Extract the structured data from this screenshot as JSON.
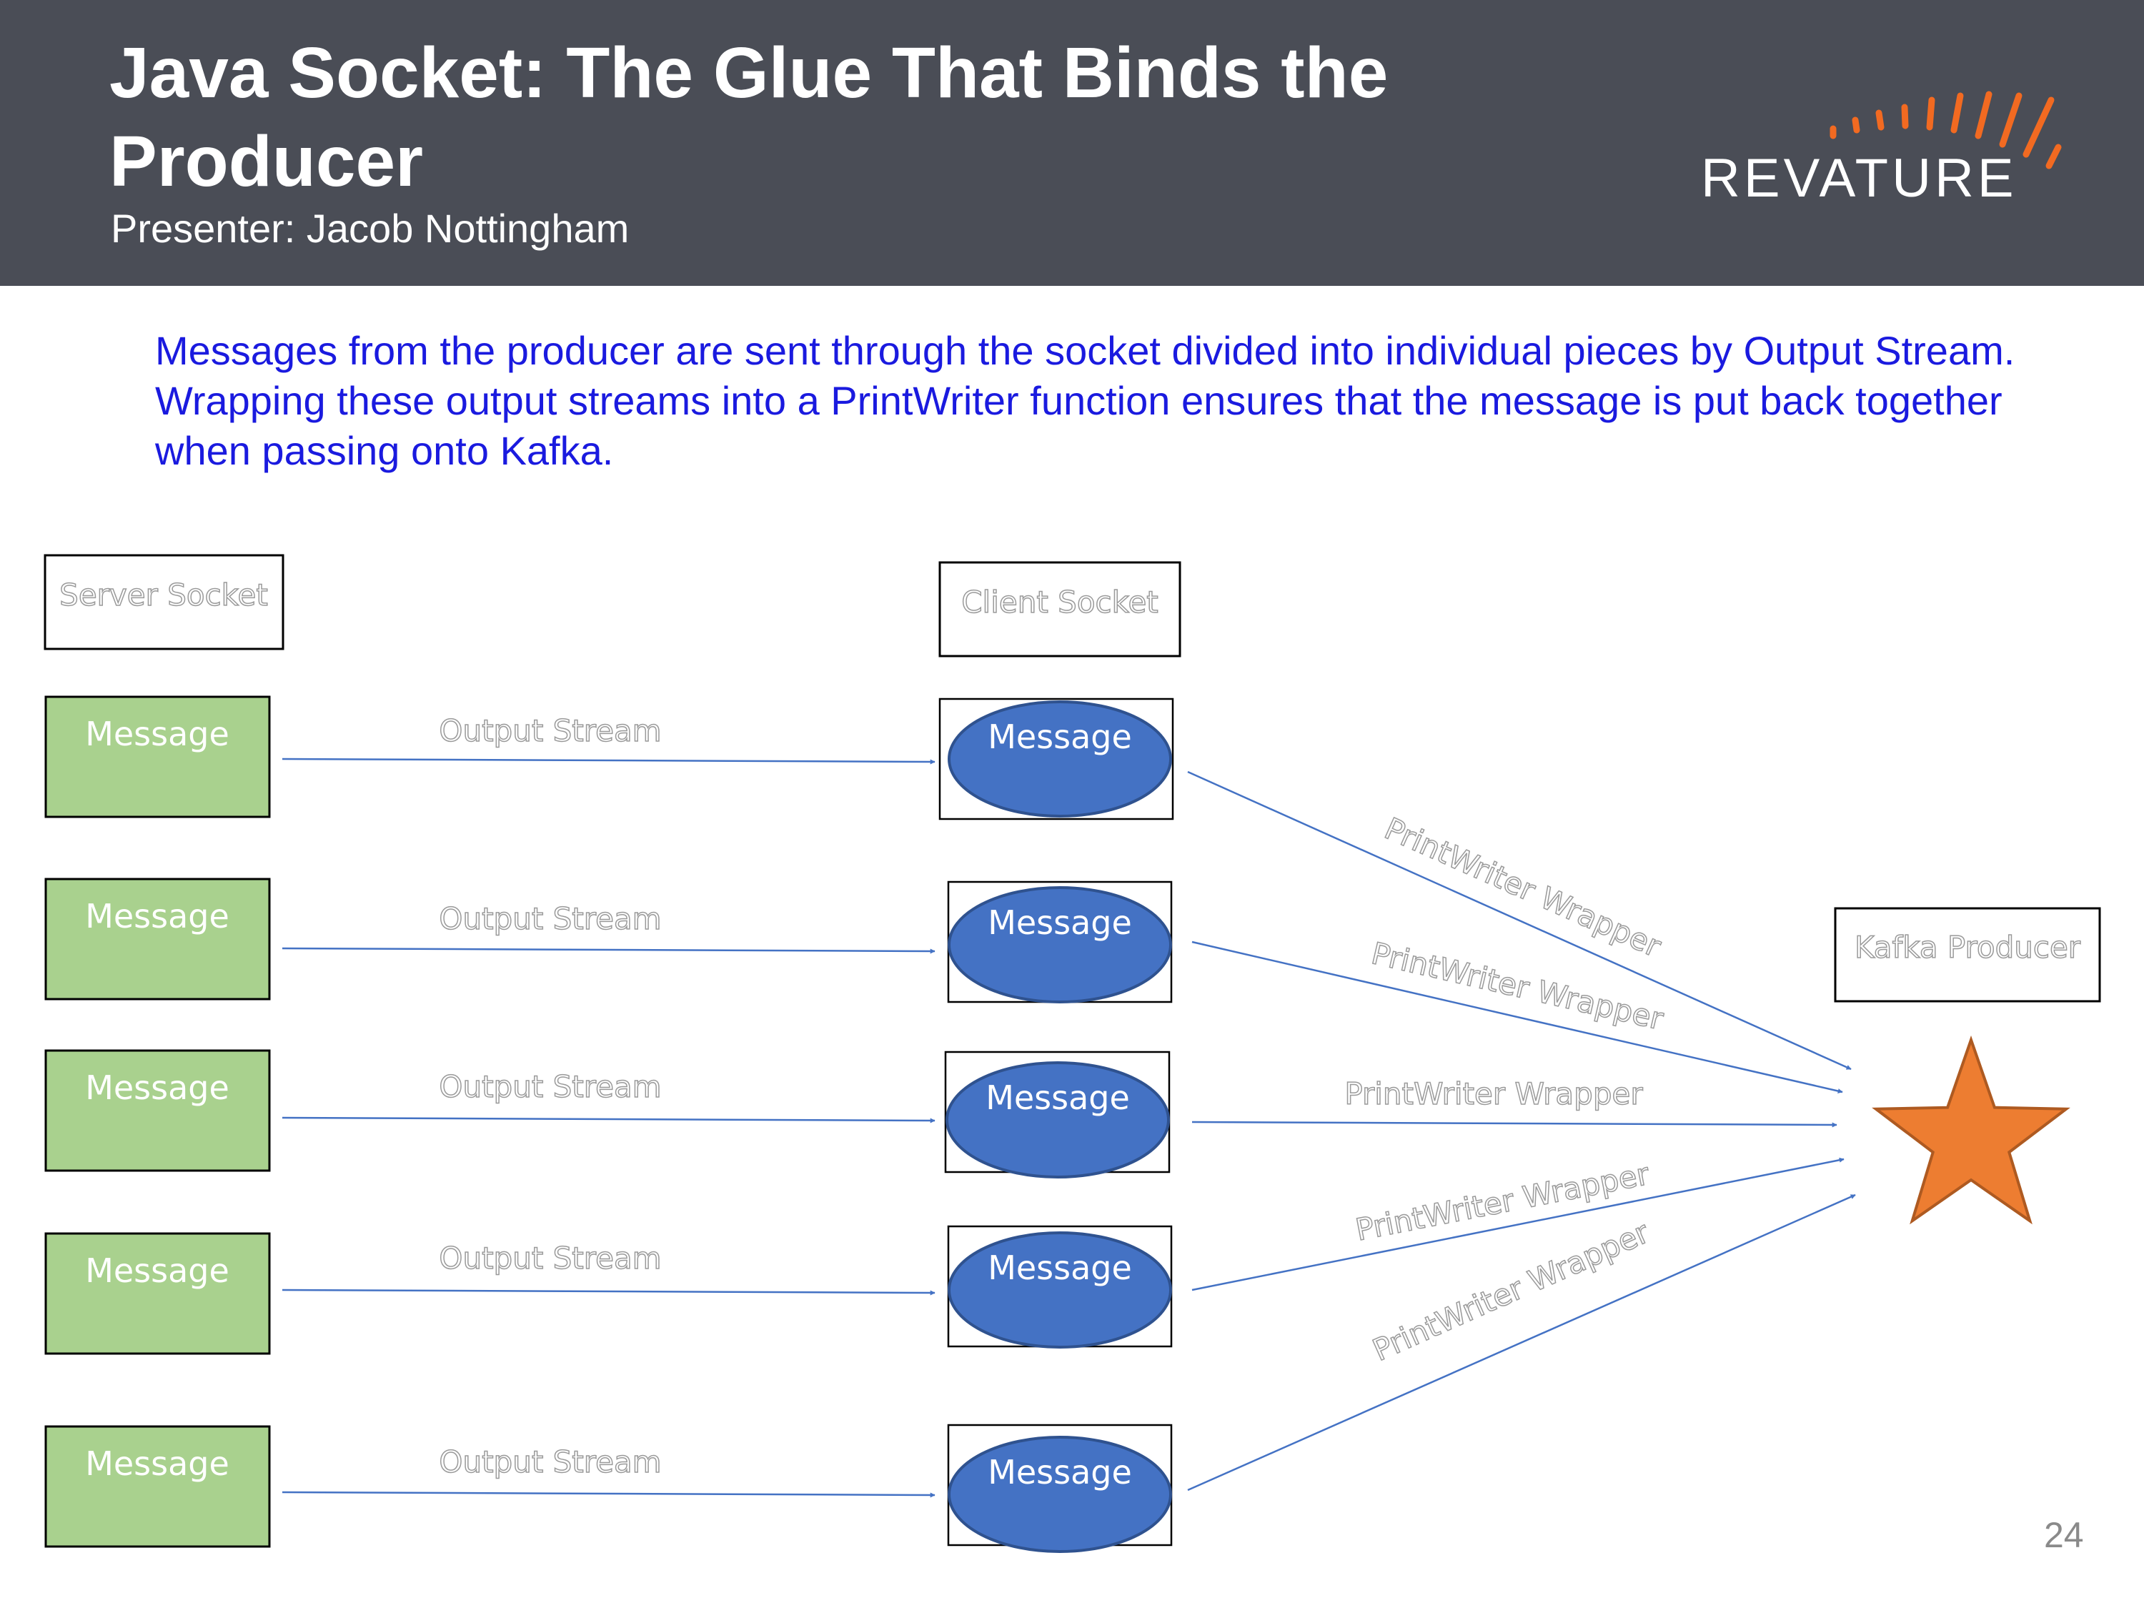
{
  "slide": {
    "title": "Java Socket: The Glue That Binds the Producer",
    "subtitle": "Presenter: Jacob Nottingham",
    "logo_text": "REVATURE",
    "intro": "Messages from the producer are sent through the socket divided into individual pieces by Output Stream. Wrapping these output streams into a PrintWriter function ensures that the message is put back together when passing onto Kafka.",
    "page_number": "24"
  },
  "diagram": {
    "server_label": "Server Socket",
    "client_label": "Client Socket",
    "kafka_label": "Kafka Producer",
    "messages": [
      "Message",
      "Message",
      "Message",
      "Message",
      "Message"
    ],
    "stream_label": "Output Stream",
    "wrapper_label": "PrintWriter Wrapper",
    "colors": {
      "message_green": "#a9d18e",
      "message_blue": "#4472c4",
      "arrow": "#4472c4",
      "star": "#ed7d31",
      "header": "#4a4d56",
      "intro_text": "#1a1adf"
    }
  }
}
